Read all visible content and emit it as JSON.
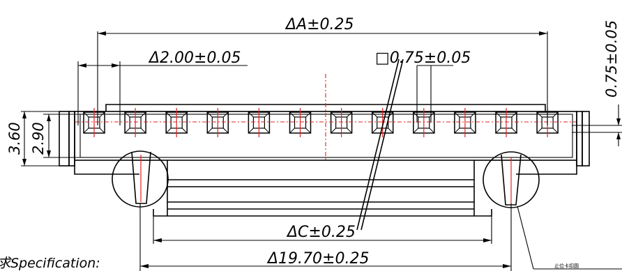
{
  "dimensions": {
    "overall_length": "ΔA±0.25",
    "pitch": "Δ2.00±0.05",
    "pin_square": "□0.75±0.05",
    "pin_square_side": "0.75±0.05",
    "housing_height": "3.60",
    "pin_row_height": "2.90",
    "dim_c": "ΔC±0.25",
    "dim_bottom": "Δ19.70±0.25"
  },
  "labels": {
    "specification": "求Specification:",
    "callout": "止位卡扣圆"
  },
  "pins": {
    "count": 12
  }
}
